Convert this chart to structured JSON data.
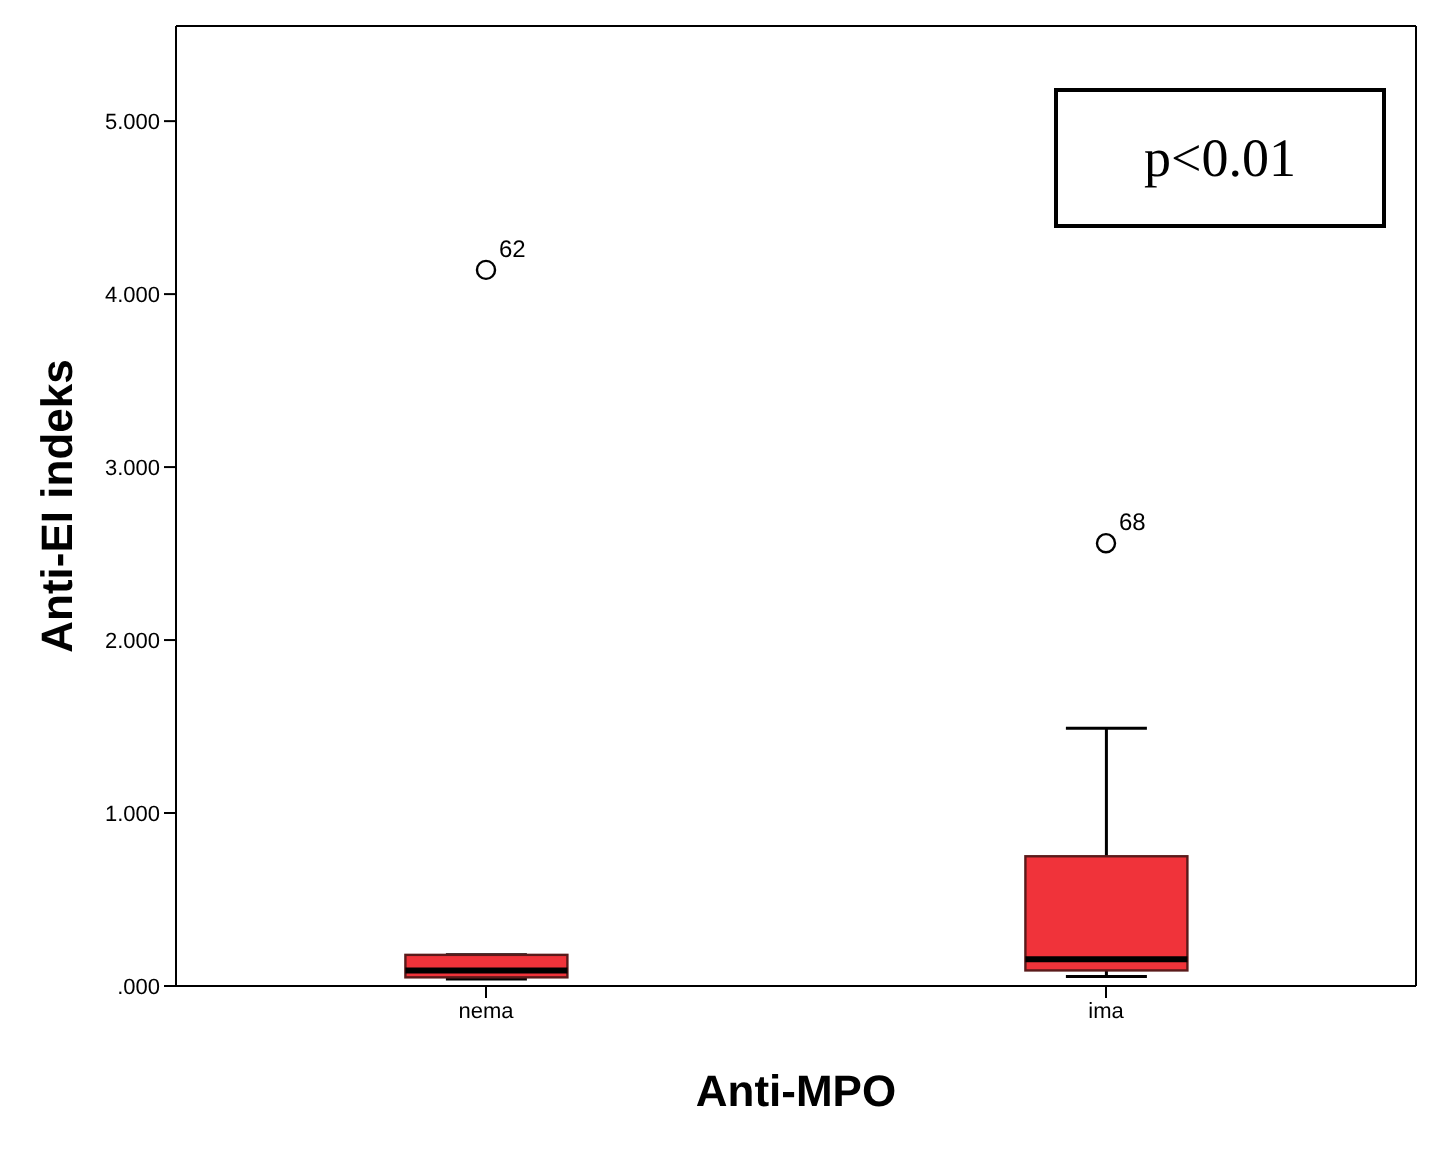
{
  "chart_data": {
    "type": "box",
    "xlabel": "Anti-MPO",
    "ylabel": "Anti-EI indeks",
    "categories": [
      "nema",
      "ima"
    ],
    "series": [
      {
        "color": "#f0333a",
        "boxes": [
          {
            "low": 0.04,
            "q1": 0.05,
            "median": 0.09,
            "q3": 0.18,
            "high": 0.18,
            "outliers": [
              4.14
            ]
          },
          {
            "low": 0.055,
            "q1": 0.09,
            "median": 0.155,
            "q3": 0.75,
            "high": 1.49,
            "outliers": [
              2.56
            ]
          }
        ]
      }
    ],
    "ylim": [
      0,
      5.55
    ],
    "yticks": [
      {
        "value": 0,
        "label": ".000"
      },
      {
        "value": 1,
        "label": "1.000"
      },
      {
        "value": 2,
        "label": "2.000"
      },
      {
        "value": 3,
        "label": "3.000"
      },
      {
        "value": 4,
        "label": "4.000"
      },
      {
        "value": 5,
        "label": "5.000"
      }
    ],
    "grid": false,
    "annotations": [
      "p<0.01",
      "62",
      "68"
    ]
  }
}
